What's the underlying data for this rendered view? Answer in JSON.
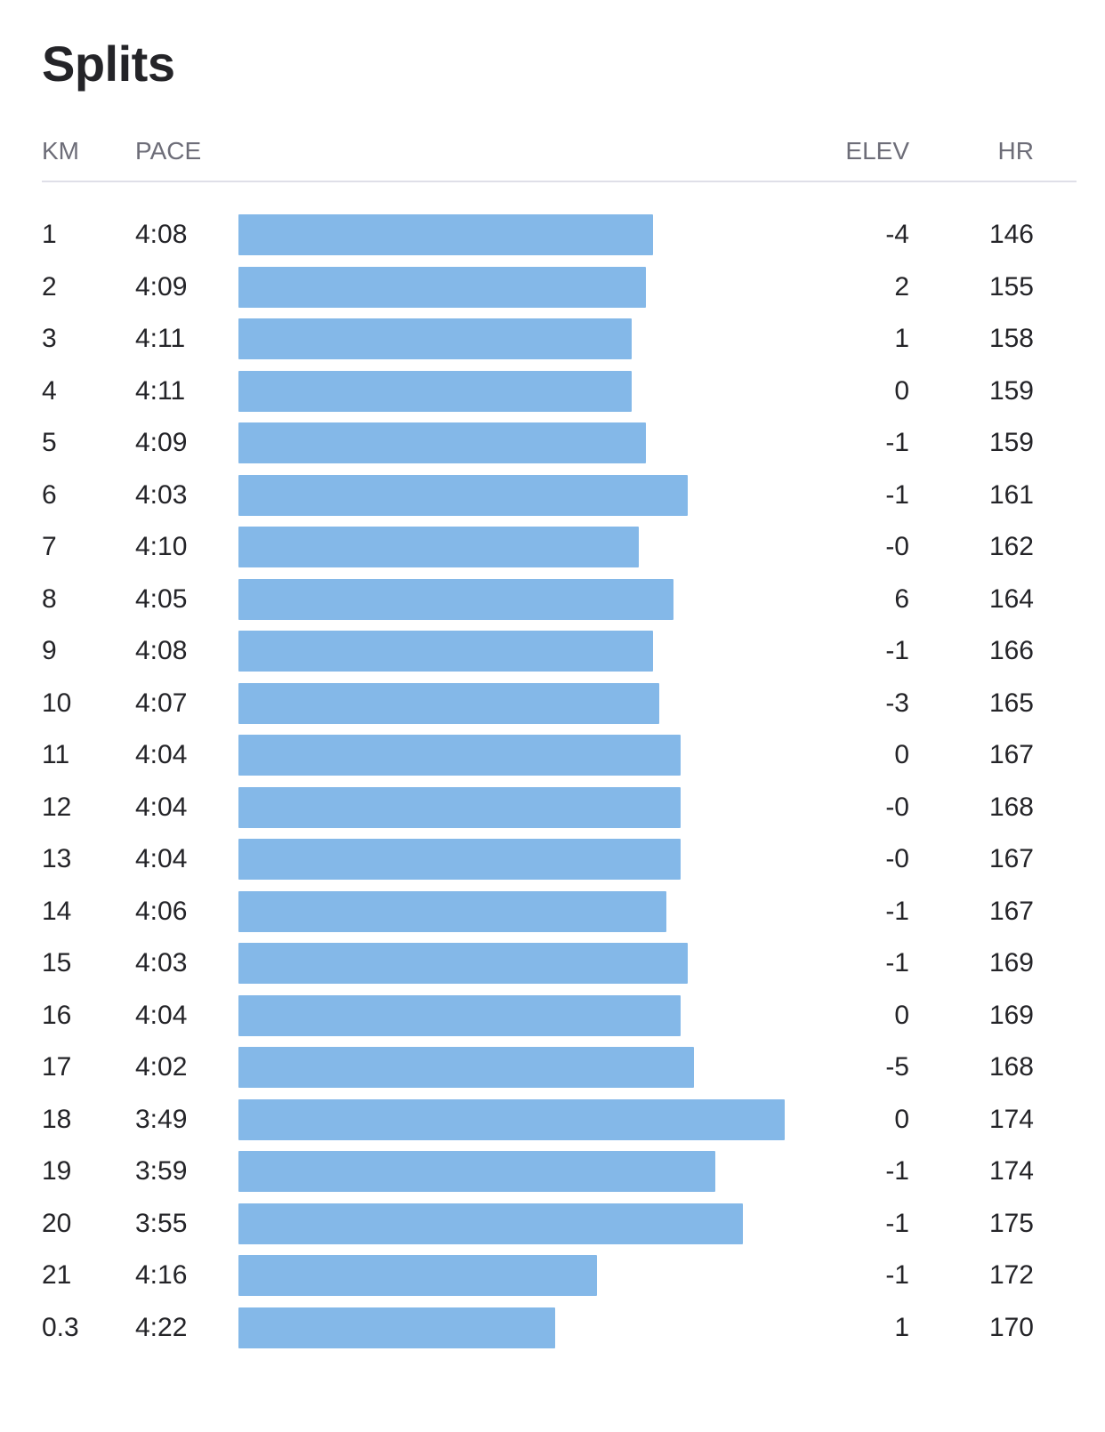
{
  "title": "Splits",
  "columns": {
    "km": "KM",
    "pace": "PACE",
    "elev": "ELEV",
    "hr": "HR"
  },
  "bar_color": "#84b8e8",
  "splits": [
    {
      "km": "1",
      "pace": "4:08",
      "elev": "-4",
      "hr": "146"
    },
    {
      "km": "2",
      "pace": "4:09",
      "elev": "2",
      "hr": "155"
    },
    {
      "km": "3",
      "pace": "4:11",
      "elev": "1",
      "hr": "158"
    },
    {
      "km": "4",
      "pace": "4:11",
      "elev": "0",
      "hr": "159"
    },
    {
      "km": "5",
      "pace": "4:09",
      "elev": "-1",
      "hr": "159"
    },
    {
      "km": "6",
      "pace": "4:03",
      "elev": "-1",
      "hr": "161"
    },
    {
      "km": "7",
      "pace": "4:10",
      "elev": "-0",
      "hr": "162"
    },
    {
      "km": "8",
      "pace": "4:05",
      "elev": "6",
      "hr": "164"
    },
    {
      "km": "9",
      "pace": "4:08",
      "elev": "-1",
      "hr": "166"
    },
    {
      "km": "10",
      "pace": "4:07",
      "elev": "-3",
      "hr": "165"
    },
    {
      "km": "11",
      "pace": "4:04",
      "elev": "0",
      "hr": "167"
    },
    {
      "km": "12",
      "pace": "4:04",
      "elev": "-0",
      "hr": "168"
    },
    {
      "km": "13",
      "pace": "4:04",
      "elev": "-0",
      "hr": "167"
    },
    {
      "km": "14",
      "pace": "4:06",
      "elev": "-1",
      "hr": "167"
    },
    {
      "km": "15",
      "pace": "4:03",
      "elev": "-1",
      "hr": "169"
    },
    {
      "km": "16",
      "pace": "4:04",
      "elev": "0",
      "hr": "169"
    },
    {
      "km": "17",
      "pace": "4:02",
      "elev": "-5",
      "hr": "168"
    },
    {
      "km": "18",
      "pace": "3:49",
      "elev": "0",
      "hr": "174"
    },
    {
      "km": "19",
      "pace": "3:59",
      "elev": "-1",
      "hr": "174"
    },
    {
      "km": "20",
      "pace": "3:55",
      "elev": "-1",
      "hr": "175"
    },
    {
      "km": "21",
      "pace": "4:16",
      "elev": "-1",
      "hr": "172"
    },
    {
      "km": "0.3",
      "pace": "4:22",
      "elev": "1",
      "hr": "170"
    }
  ]
}
